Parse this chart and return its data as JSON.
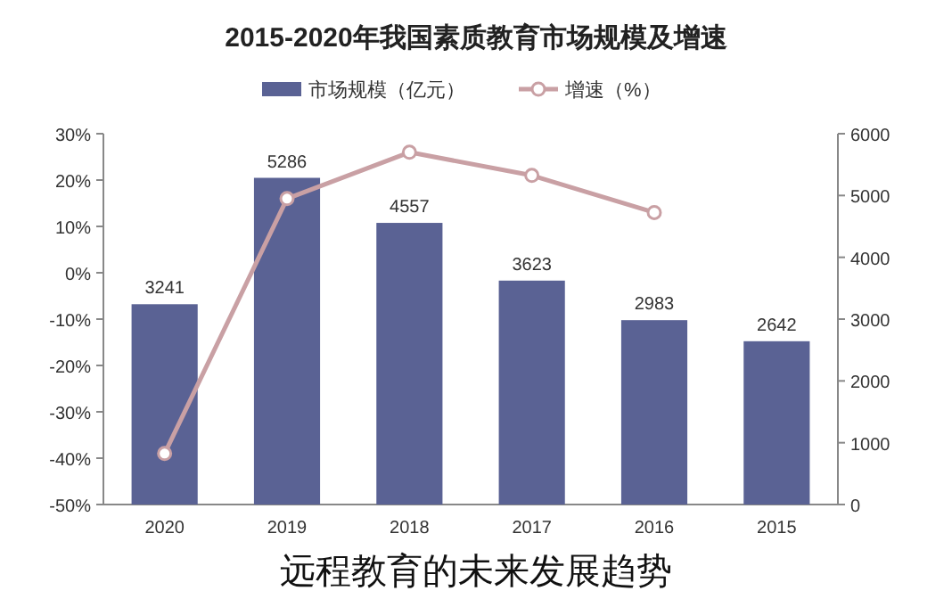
{
  "chart_data": {
    "type": "bar",
    "title": "2015-2020年我国素质教育市场规模及增速",
    "categories": [
      "2020",
      "2019",
      "2018",
      "2017",
      "2016",
      "2015"
    ],
    "series": [
      {
        "name": "市场规模（亿元）",
        "axis": "y2",
        "color": "#5a6294",
        "values": [
          3241,
          5286,
          4557,
          3623,
          2983,
          2642
        ],
        "value_labels": [
          "3241",
          "5286",
          "4557",
          "3623",
          "2983",
          "2642"
        ]
      },
      {
        "name": "增速（%）",
        "type": "line",
        "color": "#c9a0a4",
        "values": [
          -39,
          16,
          26,
          21,
          13,
          null
        ]
      }
    ],
    "marker": "circle",
    "ylim": [
      -50,
      30
    ],
    "yticks": [
      {
        "value": -50,
        "label": "-50%"
      },
      {
        "value": -40,
        "label": "-40%"
      },
      {
        "value": -30,
        "label": "-30%"
      },
      {
        "value": -20,
        "label": "-20%"
      },
      {
        "value": -10,
        "label": "-10%"
      },
      {
        "value": 0,
        "label": "0%"
      },
      {
        "value": 10,
        "label": "10%"
      },
      {
        "value": 20,
        "label": "20%"
      },
      {
        "value": 30,
        "label": "30%"
      }
    ],
    "y2lim": [
      0,
      6000
    ],
    "y2ticks": [
      0,
      1000,
      2000,
      3000,
      4000,
      5000,
      6000
    ],
    "legend": "top",
    "annotations": [
      "远程教育的未来发展趋势"
    ]
  }
}
